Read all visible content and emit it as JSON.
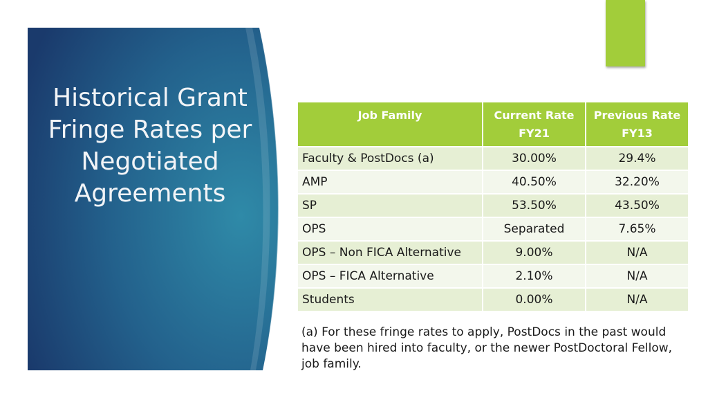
{
  "slide": {
    "title": "Historical Grant Fringe Rates per Negotiated Agreements",
    "accent_color": "#a2cd3a",
    "panel_colors": [
      "#1c3f73",
      "#2f8aa8"
    ]
  },
  "table": {
    "headers": [
      "Job Family",
      "Current Rate FY21",
      "Previous Rate FY13"
    ],
    "rows": [
      [
        "Faculty & PostDocs (a)",
        "30.00%",
        "29.4%"
      ],
      [
        "AMP",
        "40.50%",
        "32.20%"
      ],
      [
        "SP",
        "53.50%",
        "43.50%"
      ],
      [
        "OPS",
        "Separated",
        "7.65%"
      ],
      [
        "OPS – Non FICA Alternative",
        "9.00%",
        "N/A"
      ],
      [
        "OPS – FICA Alternative",
        "2.10%",
        "N/A"
      ],
      [
        "Students",
        "0.00%",
        "N/A"
      ]
    ]
  },
  "footnote": "(a)  For these fringe rates to apply, PostDocs in the past would have been hired into faculty, or the newer PostDoctoral Fellow, job family."
}
